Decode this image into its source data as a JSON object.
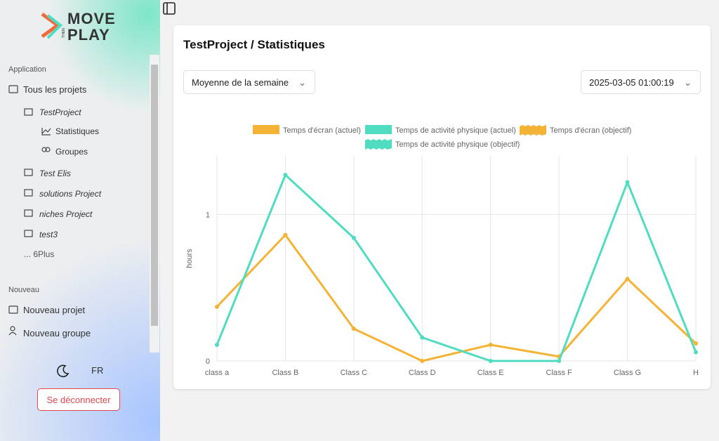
{
  "sidebar": {
    "logo": {
      "top": "MOVE",
      "middle": "THEN",
      "bottom": "PLAY"
    },
    "application": {
      "heading": "Application",
      "all_projects": "Tous les projets",
      "projects": [
        {
          "name": "TestProject",
          "children": [
            "Statistiques",
            "Groupes"
          ]
        },
        {
          "name": "Test Elis"
        },
        {
          "name": "solutions Project"
        },
        {
          "name": "niches Project"
        },
        {
          "name": "test3"
        }
      ],
      "more": "... 6Plus"
    },
    "new": {
      "heading": "Nouveau",
      "items": [
        "Nouveau projet",
        "Nouveau groupe"
      ]
    },
    "language": "FR",
    "logout": "Se déconnecter"
  },
  "main": {
    "title": "TestProject / Statistiques",
    "period": "Moyenne de la semaine",
    "date": "2025-03-05 01:00:19"
  },
  "chart_data": {
    "type": "line",
    "y_label": "hours",
    "categories": [
      "class a",
      "Class B",
      "Class C",
      "Class D",
      "Class E",
      "Class F",
      "Class G",
      "H"
    ],
    "series": [
      {
        "name": "Temps d'écran (actuel)",
        "color": "#f5b335",
        "values": [
          0.37,
          0.86,
          0.22,
          0,
          0.11,
          0.03,
          0.56,
          0.12
        ]
      },
      {
        "name": "Temps de activité physique (actuel)",
        "color": "#4fdcc0",
        "values": [
          0.11,
          1.27,
          0.84,
          0.16,
          0,
          0,
          1.22,
          0.06
        ]
      },
      {
        "name": "Temps d'écran (objectif)",
        "color": "#f5b335",
        "values": [
          null,
          null,
          null,
          null,
          null,
          null,
          null,
          null
        ]
      },
      {
        "name": "Temps de activité physique (objectif)",
        "color": "#4fdcc0",
        "values": [
          null,
          null,
          null,
          null,
          null,
          null,
          null,
          null
        ]
      }
    ],
    "ylim": [
      0,
      1.4
    ],
    "yticks": [
      0,
      1
    ],
    "grid": true
  }
}
